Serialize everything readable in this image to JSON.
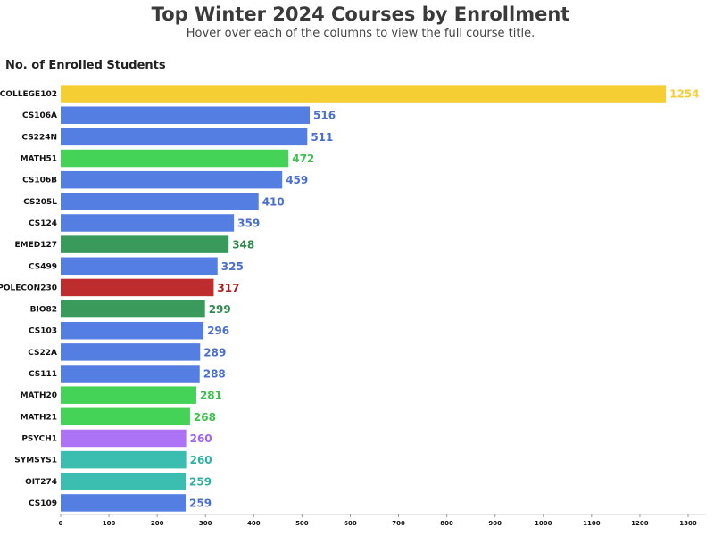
{
  "chart_data": {
    "type": "bar",
    "orientation": "horizontal",
    "title": "Top Winter 2024 Courses by Enrollment",
    "subtitle": "Hover over each of the columns to view the full course title.",
    "xlabel": "No. of Enrolled Students",
    "xlim": [
      0,
      1300
    ],
    "xticks": [
      0,
      100,
      200,
      300,
      400,
      500,
      600,
      700,
      800,
      900,
      1000,
      1100,
      1200,
      1300
    ],
    "grid": false,
    "categories": [
      "COLLEGE102",
      "CS106A",
      "CS224N",
      "MATH51",
      "CS106B",
      "CS205L",
      "CS124",
      "EMED127",
      "CS499",
      "POLECON230",
      "BIO82",
      "CS103",
      "CS22A",
      "CS111",
      "MATH20",
      "MATH21",
      "PSYCH1",
      "SYMSYS1",
      "OIT274",
      "CS109"
    ],
    "values": [
      1254,
      516,
      511,
      472,
      459,
      410,
      359,
      348,
      325,
      317,
      299,
      296,
      289,
      288,
      281,
      268,
      260,
      260,
      259,
      259
    ],
    "colors": [
      "#f5ce34",
      "#557ee3",
      "#557ee3",
      "#44d356",
      "#557ee3",
      "#557ee3",
      "#557ee3",
      "#3a9a5b",
      "#557ee3",
      "#bf2c2e",
      "#3a9a5b",
      "#557ee3",
      "#557ee3",
      "#557ee3",
      "#44d356",
      "#44d356",
      "#ac73f7",
      "#3bbdb0",
      "#3bbdb0",
      "#557ee3"
    ],
    "label_colors": [
      "#f5ce34",
      "#4a6fd0",
      "#4a6fd0",
      "#3cc24b",
      "#4a6fd0",
      "#4a6fd0",
      "#4a6fd0",
      "#2f8a4d",
      "#4a6fd0",
      "#b31b1b",
      "#2f8a4d",
      "#4a6fd0",
      "#4a6fd0",
      "#4a6fd0",
      "#3cc24b",
      "#3cc24b",
      "#a066f0",
      "#30b0a3",
      "#30b0a3",
      "#4a6fd0"
    ]
  }
}
